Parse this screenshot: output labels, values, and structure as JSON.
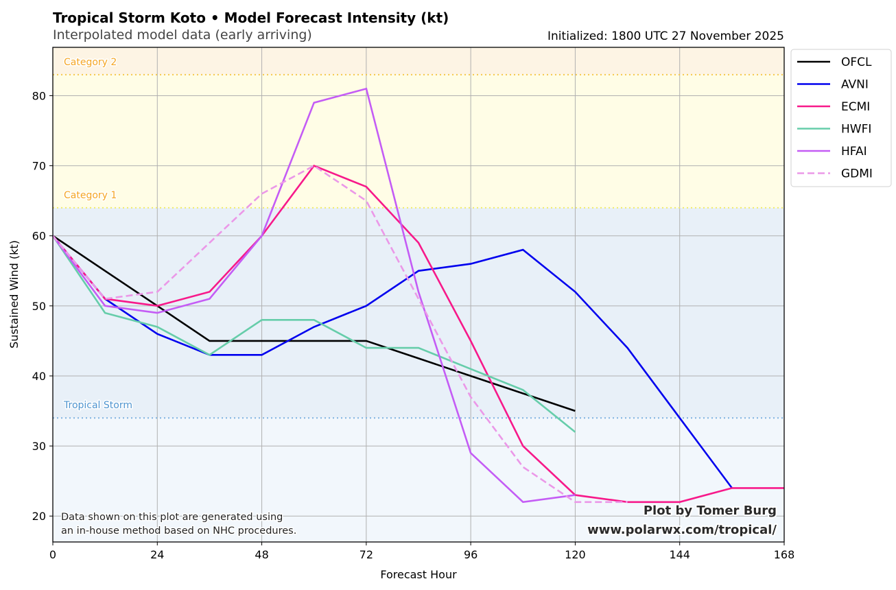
{
  "chart_data": {
    "type": "line",
    "title": "Tropical Storm Koto • Model Forecast Intensity (kt)",
    "subtitle": "Interpolated model data (early arriving)",
    "initialized": "Initialized: 1800 UTC 27 November 2025",
    "xlabel": "Forecast Hour",
    "ylabel": "Sustained Wind (kt)",
    "xlim": [
      0,
      168
    ],
    "ylim": [
      16.3,
      86.9
    ],
    "xticks": [
      0,
      24,
      48,
      72,
      96,
      120,
      144,
      168
    ],
    "yticks": [
      20,
      30,
      40,
      50,
      60,
      70,
      80
    ],
    "grid": true,
    "legend_position": "outside-top-right",
    "bands": [
      {
        "name": "Tropical Storm",
        "from": 16.3,
        "to": 34,
        "color": "#f2f7fc",
        "line": 34,
        "line_color": "#7fb3e0",
        "label_color": "#5b9bd0",
        "show_label": false
      },
      {
        "name": "Tropical Storm",
        "from": 34,
        "to": 64,
        "color": "#e8f0f8",
        "line": 34,
        "line_color": "#7fb3e0",
        "label_color": "#4e94cf",
        "show_label": true
      },
      {
        "name": "Category 1",
        "from": 64,
        "to": 83,
        "color": "#fffde6",
        "line": 64,
        "line_color": "#f0ec6a",
        "label_color": "#f5a623",
        "show_label": true
      },
      {
        "name": "Category 2",
        "from": 83,
        "to": 86.9,
        "color": "#fdf4e4",
        "line": 83,
        "line_color": "#f5c84a",
        "label_color": "#f5a623",
        "show_label": true
      }
    ],
    "series": [
      {
        "name": "OFCL",
        "color": "#000000",
        "dashed": false,
        "x": [
          0,
          12,
          24,
          36,
          48,
          60,
          72,
          84,
          96,
          108,
          120
        ],
        "values": [
          60,
          55,
          50,
          45,
          45,
          45,
          45,
          42.5,
          40,
          37.5,
          35
        ]
      },
      {
        "name": "AVNI",
        "color": "#0000ee",
        "dashed": false,
        "x": [
          0,
          12,
          24,
          36,
          48,
          60,
          72,
          84,
          96,
          108,
          120,
          132,
          144,
          156
        ],
        "values": [
          60,
          51,
          46,
          43,
          43,
          47,
          50,
          55,
          56,
          58,
          52,
          44,
          34,
          24
        ]
      },
      {
        "name": "ECMI",
        "color": "#f7198a",
        "dashed": false,
        "x": [
          0,
          12,
          24,
          36,
          48,
          60,
          72,
          84,
          96,
          108,
          120,
          132,
          144,
          156,
          168
        ],
        "values": [
          60,
          51,
          50,
          52,
          60,
          70,
          67,
          59,
          45,
          30,
          23,
          22,
          22,
          24,
          24
        ]
      },
      {
        "name": "HWFI",
        "color": "#66cdaa",
        "dashed": false,
        "x": [
          0,
          12,
          24,
          36,
          48,
          60,
          72,
          84,
          96,
          108,
          120
        ],
        "values": [
          60,
          49,
          47,
          43,
          48,
          48,
          44,
          44,
          41,
          38,
          32
        ]
      },
      {
        "name": "HFAI",
        "color": "#c45cf5",
        "dashed": false,
        "x": [
          0,
          12,
          24,
          36,
          48,
          60,
          72,
          84,
          96,
          108,
          120
        ],
        "values": [
          60,
          50,
          49,
          51,
          60,
          79,
          81,
          52,
          29,
          22,
          23
        ]
      },
      {
        "name": "GDMI",
        "color": "#eb98e8",
        "dashed": true,
        "x": [
          0,
          12,
          24,
          36,
          48,
          60,
          72,
          84,
          96,
          108,
          120,
          132
        ],
        "values": [
          60,
          51,
          52,
          59,
          66,
          70,
          65,
          51,
          37,
          27,
          22,
          22
        ]
      }
    ],
    "annotations": {
      "note_line1": "Data shown on this plot are generated using",
      "note_line2": "an in-house method based on NHC procedures.",
      "credit_line1": "Plot by Tomer Burg",
      "credit_line2": "www.polarwx.com/tropical/"
    }
  }
}
